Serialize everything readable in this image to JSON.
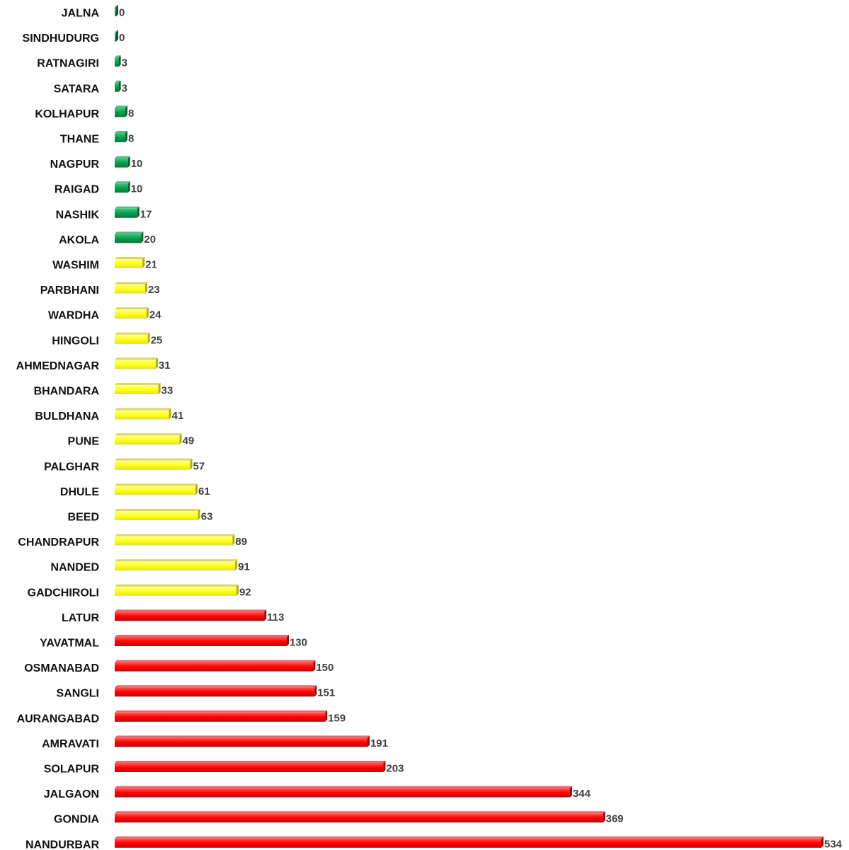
{
  "chart_data": {
    "type": "bar",
    "orientation": "horizontal",
    "title": "",
    "xlabel": "",
    "ylabel": "",
    "xlim": [
      0,
      534
    ],
    "grid": false,
    "legend": "none",
    "categories": [
      "JALNA",
      "SINDHUDURG",
      "RATNAGIRI",
      "SATARA",
      "KOLHAPUR",
      "THANE",
      "NAGPUR",
      "RAIGAD",
      "NASHIK",
      "AKOLA",
      "WASHIM",
      "PARBHANI",
      "WARDHA",
      "HINGOLI",
      "AHMEDNAGAR",
      "BHANDARA",
      "BULDHANA",
      "PUNE",
      "PALGHAR",
      "DHULE",
      "BEED",
      "CHANDRAPUR",
      "NANDED",
      "GADCHIROLI",
      "LATUR",
      "YAVATMAL",
      "OSMANABAD",
      "SANGLI",
      "AURANGABAD",
      "AMRAVATI",
      "SOLAPUR",
      "JALGAON",
      "GONDIA",
      "NANDURBAR"
    ],
    "values": [
      0,
      0,
      3,
      3,
      8,
      8,
      10,
      10,
      17,
      20,
      21,
      23,
      24,
      25,
      31,
      33,
      41,
      49,
      57,
      61,
      63,
      89,
      91,
      92,
      113,
      130,
      150,
      151,
      159,
      191,
      203,
      344,
      369,
      534
    ],
    "value_labels": [
      "0",
      "0",
      "3",
      "3",
      "8",
      "8",
      "10",
      "10",
      "17",
      "20",
      "21",
      "23",
      "24",
      "25",
      "31",
      "33",
      "41",
      "49",
      "57",
      "61",
      "63",
      "89",
      "91",
      "92",
      "113",
      "130",
      "150",
      "151",
      "159",
      "191",
      "203",
      "344",
      "369",
      "534"
    ],
    "color_bands": [
      {
        "color": "#00a04a",
        "side": "#00642c",
        "min": 0,
        "max": 20
      },
      {
        "color": "#ffff33",
        "side": "#b8b000",
        "min": 21,
        "max": 100
      },
      {
        "color": "#ff0000",
        "side": "#a80000",
        "min": 101,
        "max": 1000
      }
    ]
  }
}
